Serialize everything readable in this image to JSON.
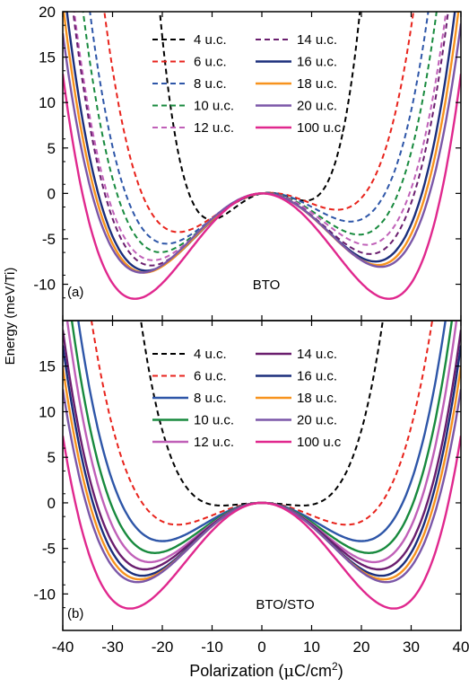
{
  "figure": {
    "ylabel": "Energy (meV/Ti)",
    "xlabel_main": "Polarization (",
    "xlabel_mu": "μ",
    "xlabel_unit": "C/cm",
    "xlabel_sup": "2",
    "xlabel_close": ")"
  },
  "chart_data": [
    {
      "type": "line",
      "panel": "(a)",
      "annotation": "BTO",
      "xlabel": "Polarization (μC/cm2)",
      "ylabel": "Energy (meV/Ti)",
      "xlim": [
        -40,
        40
      ],
      "ylim": [
        -14,
        20
      ],
      "xticks": [
        -40,
        -30,
        -20,
        -10,
        0,
        10,
        20,
        30,
        40
      ],
      "yticks": [
        -10,
        -5,
        0,
        5,
        10,
        15,
        20
      ],
      "legend_placement": "top-center",
      "series": [
        {
          "name": "4 u.c.",
          "color": "#000000",
          "dash": true,
          "x_min": -9.5,
          "y_min": -1.8,
          "x_max": 0,
          "y_max": 0,
          "x_zero": -20,
          "left_end": [
            -30,
            20
          ],
          "right_end": [
            27,
            20
          ]
        },
        {
          "name": "6 u.c.",
          "color": "#e8231c",
          "dash": true,
          "x_min": -16,
          "y_min": -3.0,
          "x_max": 0,
          "y_max": 0,
          "x_zero": -22.5,
          "left_end": [
            -35,
            20
          ],
          "right_end": [
            34,
            20
          ]
        },
        {
          "name": "8 u.c.",
          "color": "#2e56a8",
          "dash": true,
          "x_min": -18.5,
          "y_min": -4.3,
          "x_max": 0.5,
          "y_max": 0,
          "x_zero": -25,
          "left_end": [
            -37,
            20
          ],
          "right_end": [
            35.5,
            20
          ]
        },
        {
          "name": "10 u.c.",
          "color": "#188a3e",
          "dash": true,
          "x_min": -20,
          "y_min": -5.5,
          "x_max": 1,
          "y_max": 0,
          "x_zero": -27,
          "left_end": [
            -38,
            20
          ],
          "right_end": [
            37,
            20
          ]
        },
        {
          "name": "12 u.c.",
          "color": "#c060b8",
          "dash": true,
          "x_min": -21.5,
          "y_min": -6.5,
          "x_max": 1.5,
          "y_max": 0,
          "x_zero": -28,
          "left_end": [
            -38.5,
            20
          ],
          "right_end": [
            37.5,
            20
          ]
        },
        {
          "name": "14 u.c.",
          "color": "#6a1e6e",
          "dash": true,
          "x_min": -22,
          "y_min": -7.3,
          "x_max": 2,
          "y_max": 0,
          "x_zero": -29,
          "left_end": [
            -39,
            20
          ],
          "right_end": [
            38,
            20
          ]
        },
        {
          "name": "16 u.c.",
          "color": "#1b2f7c",
          "dash": false,
          "x_min": -23,
          "y_min": -8.0,
          "x_max": 2,
          "y_max": 0,
          "x_zero": -30,
          "left_end": [
            -39.5,
            20
          ],
          "right_end": [
            38.5,
            20
          ]
        },
        {
          "name": "18 u.c.",
          "color": "#f7931e",
          "dash": false,
          "x_min": -23.5,
          "y_min": -8.3,
          "x_max": 2,
          "y_max": 0,
          "x_zero": -30.5,
          "left_end": [
            -40,
            19
          ],
          "right_end": [
            39,
            20
          ]
        },
        {
          "name": "20 u.c.",
          "color": "#7b57a8",
          "dash": false,
          "x_min": -24,
          "y_min": -8.4,
          "x_max": 2,
          "y_max": 0,
          "x_zero": -31,
          "left_end": [
            -40,
            18
          ],
          "right_end": [
            39.5,
            20
          ]
        },
        {
          "name": "100 u.c.",
          "color": "#e0288e",
          "dash": false,
          "x_min": -25.5,
          "y_min": -11.6,
          "x_max": 0,
          "y_max": 0,
          "x_zero": -34,
          "left_end": [
            -40,
            8
          ],
          "right_end": [
            40,
            16
          ]
        }
      ]
    },
    {
      "type": "line",
      "panel": "(b)",
      "annotation": "BTO/STO",
      "xlabel": "Polarization (μC/cm2)",
      "ylabel": "Energy (meV/Ti)",
      "xlim": [
        -40,
        40
      ],
      "ylim": [
        -14,
        20
      ],
      "xticks": [
        -40,
        -30,
        -20,
        -10,
        0,
        10,
        20,
        30,
        40
      ],
      "yticks": [
        -10,
        -5,
        0,
        5,
        10,
        15
      ],
      "legend_placement": "top-center",
      "series": [
        {
          "name": "4 u.c.",
          "color": "#000000",
          "dash": true,
          "x_min": -8,
          "y_min": -0.3,
          "x_zero": -12,
          "left_end": [
            -30,
            20
          ],
          "right_end": [
            30,
            20
          ]
        },
        {
          "name": "6 u.c.",
          "color": "#e8231c",
          "dash": true,
          "x_min": -17,
          "y_min": -2.4,
          "x_zero": -24,
          "left_end": [
            -35,
            20
          ],
          "right_end": [
            35,
            20
          ]
        },
        {
          "name": "8 u.c.",
          "color": "#2e56a8",
          "dash": false,
          "x_min": -20,
          "y_min": -4.2,
          "x_zero": -27,
          "left_end": [
            -37,
            20
          ],
          "right_end": [
            37,
            20
          ]
        },
        {
          "name": "10 u.c.",
          "color": "#188a3e",
          "dash": false,
          "x_min": -21.5,
          "y_min": -5.5,
          "x_zero": -28.5,
          "left_end": [
            -38,
            20
          ],
          "right_end": [
            38,
            20
          ]
        },
        {
          "name": "12 u.c.",
          "color": "#c060b8",
          "dash": false,
          "x_min": -22.5,
          "y_min": -6.5,
          "x_zero": -29.5,
          "left_end": [
            -38.5,
            20
          ],
          "right_end": [
            38.5,
            20
          ]
        },
        {
          "name": "14 u.c.",
          "color": "#6a1e6e",
          "dash": false,
          "x_min": -23.5,
          "y_min": -7.3,
          "x_zero": -30.5,
          "left_end": [
            -39,
            20
          ],
          "right_end": [
            39,
            20
          ]
        },
        {
          "name": "16 u.c.",
          "color": "#1b2f7c",
          "dash": false,
          "x_min": -24,
          "y_min": -8.0,
          "x_zero": -31,
          "left_end": [
            -39.5,
            20
          ],
          "right_end": [
            39.5,
            20
          ]
        },
        {
          "name": "18 u.c.",
          "color": "#f7931e",
          "dash": false,
          "x_min": -24.5,
          "y_min": -8.4,
          "x_zero": -31.5,
          "left_end": [
            -40,
            19.5
          ],
          "right_end": [
            40,
            19.5
          ]
        },
        {
          "name": "20 u.c.",
          "color": "#7b57a8",
          "dash": false,
          "x_min": -25,
          "y_min": -8.7,
          "x_zero": -32,
          "left_end": [
            -40,
            18
          ],
          "right_end": [
            40,
            18
          ]
        },
        {
          "name": "100 u.c",
          "color": "#e0288e",
          "dash": false,
          "x_min": -26.5,
          "y_min": -11.6,
          "x_zero": -34,
          "left_end": [
            -40,
            15.5
          ],
          "right_end": [
            40,
            15.5
          ]
        }
      ]
    }
  ]
}
